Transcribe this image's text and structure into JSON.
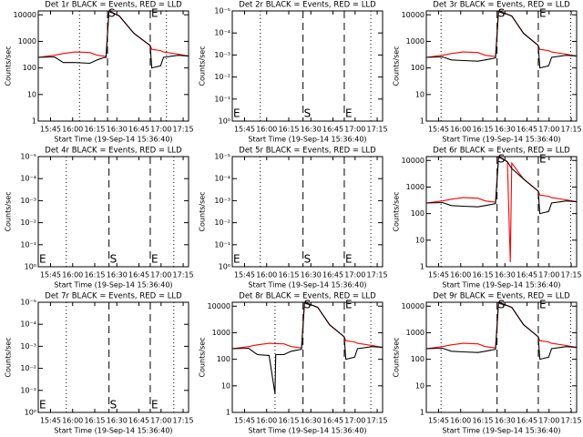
{
  "chart_data": [
    {
      "type": "line",
      "title": "Det 1r BLACK = Events, RED = LLD",
      "xlabel": "Start Time (19-Sep-14 15:36:40)",
      "ylabel": "Counts/sec",
      "log_y": true,
      "xlim": [
        0,
        102
      ],
      "ylim": [
        1,
        14000
      ],
      "xticks": [
        {
          "value": 8.33,
          "label": "15:45"
        },
        {
          "value": 23.33,
          "label": "16:00"
        },
        {
          "value": 38.33,
          "label": "16:15"
        },
        {
          "value": 53.33,
          "label": "16:30"
        },
        {
          "value": 68.33,
          "label": "16:45"
        },
        {
          "value": 83.33,
          "label": "17:00"
        },
        {
          "value": 98.33,
          "label": "17:15"
        }
      ],
      "yticks": [
        1,
        10,
        100,
        1000,
        10000
      ],
      "label_pos": "top",
      "vlines": [
        {
          "x": 28,
          "style": "dotted"
        },
        {
          "x": 47,
          "style": "dashed",
          "label": "S"
        },
        {
          "x": 76,
          "style": "dashed",
          "label": "E"
        },
        {
          "x": 87,
          "style": "dotted"
        }
      ],
      "x": [
        0,
        11,
        17,
        25,
        35,
        40,
        44,
        46,
        48,
        55,
        65,
        76,
        77,
        83,
        85,
        95,
        102
      ],
      "series": [
        {
          "name": "LLD",
          "color": "#ff0000",
          "values": [
            250,
            300,
            350,
            400,
            380,
            300,
            280,
            270,
            14000,
            9000,
            2000,
            700,
            500,
            450,
            400,
            330,
            280
          ]
        },
        {
          "name": "Events",
          "color": "#000000",
          "values": [
            250,
            260,
            160,
            160,
            150,
            200,
            240,
            250,
            14000,
            9000,
            2000,
            700,
            100,
            120,
            250,
            300,
            280
          ]
        }
      ]
    },
    {
      "type": "line",
      "title": "Det 2r BLACK = Events, RED = LLD",
      "xlabel": "Start Time (19-Sep-14 15:36:40)",
      "ylabel": "Counts/sec",
      "log_y": true,
      "xlim": [
        0,
        102
      ],
      "ylim": [
        1,
        1e-05
      ],
      "xticks": [
        {
          "value": 8.33,
          "label": "15:45"
        },
        {
          "value": 23.33,
          "label": "16:00"
        },
        {
          "value": 38.33,
          "label": "16:15"
        },
        {
          "value": 53.33,
          "label": "16:30"
        },
        {
          "value": 68.33,
          "label": "16:45"
        },
        {
          "value": 83.33,
          "label": "17:00"
        },
        {
          "value": 98.33,
          "label": "17:15"
        }
      ],
      "yticks": [
        {
          "value": 1,
          "label": "10⁰"
        },
        {
          "value": 0.1,
          "label": "10⁻¹"
        },
        {
          "value": 0.01,
          "label": "10⁻²"
        },
        {
          "value": 0.001,
          "label": "10⁻³"
        },
        {
          "value": 0.0001,
          "label": "10⁻⁴"
        },
        {
          "value": 1e-05,
          "label": "10⁻⁵"
        }
      ],
      "label_pos": "bottom",
      "vlines": [
        {
          "x": 0,
          "style": "none",
          "label": "E"
        },
        {
          "x": 19,
          "style": "dotted"
        },
        {
          "x": 48,
          "style": "dashed",
          "label": "S"
        },
        {
          "x": 76,
          "style": "dashed",
          "label": "E"
        },
        {
          "x": 94,
          "style": "dotted"
        }
      ],
      "x": [],
      "series": []
    },
    {
      "type": "line",
      "title": "Det 3r BLACK = Events, RED = LLD",
      "xlabel": "Start Time (19-Sep-14 15:36:40)",
      "ylabel": "Counts/sec",
      "log_y": true,
      "xlim": [
        0,
        102
      ],
      "ylim": [
        1,
        14000
      ],
      "xticks": [
        {
          "value": 8.33,
          "label": "15:45"
        },
        {
          "value": 23.33,
          "label": "16:00"
        },
        {
          "value": 38.33,
          "label": "16:15"
        },
        {
          "value": 53.33,
          "label": "16:30"
        },
        {
          "value": 68.33,
          "label": "16:45"
        },
        {
          "value": 83.33,
          "label": "17:00"
        },
        {
          "value": 98.33,
          "label": "17:15"
        }
      ],
      "yticks": [
        1,
        10,
        100,
        1000,
        10000
      ],
      "label_pos": "top",
      "vlines": [
        {
          "x": 10,
          "style": "dotted"
        },
        {
          "x": 48,
          "style": "dashed",
          "label": "S"
        },
        {
          "x": 76,
          "style": "dashed",
          "label": "E"
        },
        {
          "x": 98,
          "style": "dotted"
        }
      ],
      "x": [
        0,
        11,
        17,
        25,
        35,
        40,
        44,
        47,
        49,
        58,
        66,
        76,
        77,
        83,
        85,
        95,
        102
      ],
      "series": [
        {
          "name": "LLD",
          "color": "#ff0000",
          "values": [
            250,
            300,
            350,
            400,
            380,
            300,
            280,
            270,
            14000,
            9000,
            2000,
            700,
            500,
            450,
            400,
            330,
            280
          ]
        },
        {
          "name": "Events",
          "color": "#000000",
          "values": [
            250,
            260,
            200,
            190,
            180,
            200,
            220,
            240,
            14000,
            9000,
            2000,
            700,
            100,
            120,
            250,
            300,
            280
          ]
        }
      ]
    },
    {
      "type": "line",
      "title": "Det 4r BLACK = Events, RED = LLD",
      "xlabel": "Start Time (19-Sep-14 15:36:40)",
      "ylabel": "Counts/sec",
      "log_y": true,
      "xlim": [
        0,
        102
      ],
      "ylim": [
        1,
        1e-05
      ],
      "xticks": [
        {
          "value": 8.33,
          "label": "15:45"
        },
        {
          "value": 23.33,
          "label": "16:00"
        },
        {
          "value": 38.33,
          "label": "16:15"
        },
        {
          "value": 53.33,
          "label": "16:30"
        },
        {
          "value": 68.33,
          "label": "16:45"
        },
        {
          "value": 83.33,
          "label": "17:00"
        },
        {
          "value": 98.33,
          "label": "17:15"
        }
      ],
      "yticks": [
        {
          "value": 1,
          "label": "10⁰"
        },
        {
          "value": 0.1,
          "label": "10⁻¹"
        },
        {
          "value": 0.01,
          "label": "10⁻²"
        },
        {
          "value": 0.001,
          "label": "10⁻³"
        },
        {
          "value": 0.0001,
          "label": "10⁻⁴"
        },
        {
          "value": 1e-05,
          "label": "10⁻⁵"
        }
      ],
      "label_pos": "bottom",
      "vlines": [
        {
          "x": 0,
          "style": "none",
          "label": "E"
        },
        {
          "x": 19,
          "style": "dotted"
        },
        {
          "x": 48,
          "style": "dashed",
          "label": "S"
        },
        {
          "x": 76,
          "style": "dashed",
          "label": "E"
        },
        {
          "x": 92,
          "style": "dotted"
        }
      ],
      "x": [],
      "series": []
    },
    {
      "type": "line",
      "title": "Det 5r BLACK = Events, RED = LLD",
      "xlabel": "Start Time (19-Sep-14 15:36:40)",
      "ylabel": "Counts/sec",
      "log_y": true,
      "xlim": [
        0,
        102
      ],
      "ylim": [
        1,
        1e-05
      ],
      "xticks": [
        {
          "value": 8.33,
          "label": "15:45"
        },
        {
          "value": 23.33,
          "label": "16:00"
        },
        {
          "value": 38.33,
          "label": "16:15"
        },
        {
          "value": 53.33,
          "label": "16:30"
        },
        {
          "value": 68.33,
          "label": "16:45"
        },
        {
          "value": 83.33,
          "label": "17:00"
        },
        {
          "value": 98.33,
          "label": "17:15"
        }
      ],
      "yticks": [
        {
          "value": 1,
          "label": "10⁰"
        },
        {
          "value": 0.1,
          "label": "10⁻¹"
        },
        {
          "value": 0.01,
          "label": "10⁻²"
        },
        {
          "value": 0.001,
          "label": "10⁻³"
        },
        {
          "value": 0.0001,
          "label": "10⁻⁴"
        },
        {
          "value": 1e-05,
          "label": "10⁻⁵"
        }
      ],
      "label_pos": "bottom",
      "vlines": [
        {
          "x": 0,
          "style": "none",
          "label": "E"
        },
        {
          "x": 19,
          "style": "dotted"
        },
        {
          "x": 48,
          "style": "dashed",
          "label": "S"
        },
        {
          "x": 76,
          "style": "dashed",
          "label": "E"
        },
        {
          "x": 94,
          "style": "dotted"
        }
      ],
      "x": [],
      "series": []
    },
    {
      "type": "line",
      "title": "Det 6r BLACK = Events, RED = LLD",
      "xlabel": "Start Time (19-Sep-14 15:36:40)",
      "ylabel": "Counts/sec",
      "log_y": true,
      "xlim": [
        0,
        102
      ],
      "ylim": [
        1,
        14000
      ],
      "xticks": [
        {
          "value": 8.33,
          "label": "15:45"
        },
        {
          "value": 23.33,
          "label": "16:00"
        },
        {
          "value": 38.33,
          "label": "16:15"
        },
        {
          "value": 53.33,
          "label": "16:30"
        },
        {
          "value": 68.33,
          "label": "16:45"
        },
        {
          "value": 83.33,
          "label": "17:00"
        },
        {
          "value": 98.33,
          "label": "17:15"
        }
      ],
      "yticks": [
        1,
        10,
        100,
        1000,
        10000
      ],
      "label_pos": "top",
      "vlines": [
        {
          "x": 10,
          "style": "dotted"
        },
        {
          "x": 48,
          "style": "dashed",
          "label": "S"
        },
        {
          "x": 76,
          "style": "dashed",
          "label": "E"
        },
        {
          "x": 98,
          "style": "dotted"
        }
      ],
      "x": [
        0,
        11,
        17,
        25,
        35,
        40,
        44,
        47,
        49,
        55,
        57,
        58,
        66,
        76,
        77,
        83,
        85,
        95,
        102
      ],
      "series": [
        {
          "name": "LLD",
          "color": "#ff0000",
          "values": [
            250,
            300,
            350,
            400,
            380,
            300,
            280,
            270,
            14000,
            9000,
            1.5,
            8000,
            2000,
            700,
            500,
            450,
            400,
            330,
            280
          ]
        },
        {
          "name": "Events",
          "color": "#000000",
          "values": [
            250,
            260,
            200,
            190,
            180,
            200,
            220,
            240,
            14000,
            9000,
            6000,
            5000,
            2000,
            700,
            100,
            120,
            250,
            300,
            280
          ]
        }
      ]
    },
    {
      "type": "line",
      "title": "Det 7r BLACK = Events, RED = LLD",
      "xlabel": "Start Time (19-Sep-14 15:36:40)",
      "ylabel": "Counts/sec",
      "log_y": true,
      "xlim": [
        0,
        102
      ],
      "ylim": [
        1,
        1e-05
      ],
      "xticks": [
        {
          "value": 8.33,
          "label": "15:45"
        },
        {
          "value": 23.33,
          "label": "16:00"
        },
        {
          "value": 38.33,
          "label": "16:15"
        },
        {
          "value": 53.33,
          "label": "16:30"
        },
        {
          "value": 68.33,
          "label": "16:45"
        },
        {
          "value": 83.33,
          "label": "17:00"
        },
        {
          "value": 98.33,
          "label": "17:15"
        }
      ],
      "yticks": [
        {
          "value": 1,
          "label": "10⁰"
        },
        {
          "value": 0.1,
          "label": "10⁻¹"
        },
        {
          "value": 0.01,
          "label": "10⁻²"
        },
        {
          "value": 0.001,
          "label": "10⁻³"
        },
        {
          "value": 0.0001,
          "label": "10⁻⁴"
        },
        {
          "value": 1e-05,
          "label": "10⁻⁵"
        }
      ],
      "label_pos": "bottom",
      "vlines": [
        {
          "x": 0,
          "style": "none",
          "label": "E"
        },
        {
          "x": 19,
          "style": "dotted"
        },
        {
          "x": 48,
          "style": "dashed",
          "label": "S"
        },
        {
          "x": 76,
          "style": "dashed",
          "label": "E"
        },
        {
          "x": 92,
          "style": "dotted"
        }
      ],
      "x": [],
      "series": []
    },
    {
      "type": "line",
      "title": "Det 8r BLACK = Events, RED = LLD",
      "xlabel": "Start Time (19-Sep-14 15:36:40)",
      "ylabel": "Counts/sec",
      "log_y": true,
      "xlim": [
        0,
        102
      ],
      "ylim": [
        1,
        14000
      ],
      "xticks": [
        {
          "value": 8.33,
          "label": "15:45"
        },
        {
          "value": 23.33,
          "label": "16:00"
        },
        {
          "value": 38.33,
          "label": "16:15"
        },
        {
          "value": 53.33,
          "label": "16:30"
        },
        {
          "value": 68.33,
          "label": "16:45"
        },
        {
          "value": 83.33,
          "label": "17:00"
        },
        {
          "value": 98.33,
          "label": "17:15"
        }
      ],
      "yticks": [
        1,
        10,
        100,
        1000,
        10000
      ],
      "label_pos": "top",
      "vlines": [
        {
          "x": 29,
          "style": "dotted"
        },
        {
          "x": 48,
          "style": "dashed",
          "label": "S"
        },
        {
          "x": 76,
          "style": "dashed",
          "label": "E"
        },
        {
          "x": 94,
          "style": "dotted"
        }
      ],
      "x": [
        0,
        11,
        17,
        25,
        29,
        29.5,
        35,
        40,
        44,
        47,
        49,
        58,
        66,
        76,
        77,
        83,
        85,
        95,
        102
      ],
      "series": [
        {
          "name": "LLD",
          "color": "#ff0000",
          "values": [
            250,
            300,
            350,
            400,
            390,
            390,
            380,
            300,
            280,
            270,
            14000,
            9000,
            2000,
            700,
            500,
            450,
            400,
            330,
            280
          ]
        },
        {
          "name": "Events",
          "color": "#000000",
          "values": [
            250,
            260,
            150,
            140,
            5,
            150,
            150,
            200,
            220,
            240,
            14000,
            9000,
            2000,
            700,
            100,
            120,
            250,
            300,
            280
          ]
        }
      ]
    },
    {
      "type": "line",
      "title": "Det 9r BLACK = Events, RED = LLD",
      "xlabel": "Start Time (19-Sep-14 15:36:40)",
      "ylabel": "Counts/sec",
      "log_y": true,
      "xlim": [
        0,
        102
      ],
      "ylim": [
        1,
        14000
      ],
      "xticks": [
        {
          "value": 8.33,
          "label": "15:45"
        },
        {
          "value": 23.33,
          "label": "16:00"
        },
        {
          "value": 38.33,
          "label": "16:15"
        },
        {
          "value": 53.33,
          "label": "16:30"
        },
        {
          "value": 68.33,
          "label": "16:45"
        },
        {
          "value": 83.33,
          "label": "17:00"
        },
        {
          "value": 98.33,
          "label": "17:15"
        }
      ],
      "yticks": [
        1,
        10,
        100,
        1000,
        10000
      ],
      "label_pos": "top",
      "vlines": [
        {
          "x": 10,
          "style": "dotted"
        },
        {
          "x": 48,
          "style": "dashed",
          "label": "S"
        },
        {
          "x": 76,
          "style": "dashed",
          "label": "E"
        },
        {
          "x": 98,
          "style": "dotted"
        }
      ],
      "x": [
        0,
        11,
        17,
        25,
        35,
        40,
        44,
        47,
        49,
        58,
        66,
        76,
        77,
        83,
        85,
        95,
        102
      ],
      "series": [
        {
          "name": "LLD",
          "color": "#ff0000",
          "values": [
            250,
            300,
            350,
            400,
            380,
            300,
            280,
            270,
            14000,
            9000,
            2000,
            700,
            500,
            450,
            400,
            330,
            280
          ]
        },
        {
          "name": "Events",
          "color": "#000000",
          "values": [
            250,
            260,
            200,
            190,
            180,
            200,
            220,
            240,
            14000,
            9000,
            2000,
            700,
            100,
            120,
            250,
            300,
            280
          ]
        }
      ]
    }
  ]
}
